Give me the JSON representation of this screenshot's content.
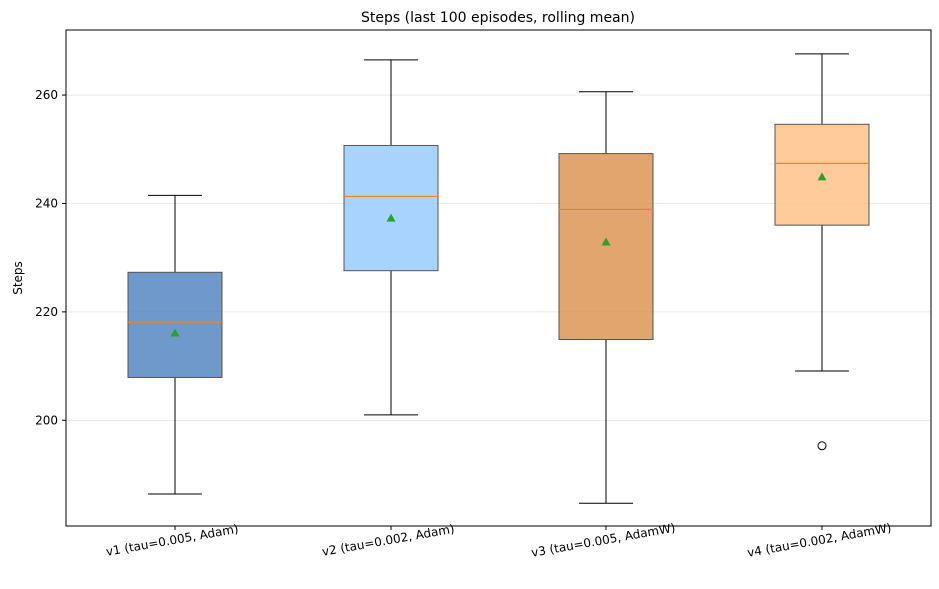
{
  "chart_data": {
    "type": "box",
    "title": "Steps (last 100 episodes, rolling mean)",
    "xlabel": "",
    "ylabel": "Steps",
    "ylim": [
      180.5,
      272.0
    ],
    "yticks": [
      200,
      220,
      240,
      260
    ],
    "grid": "y",
    "legend": "none",
    "categories": [
      "v1 (tau=0.005, Adam)",
      "v2 (tau=0.002, Adam)",
      "v3 (tau=0.005, AdamW)",
      "v4 (tau=0.002, AdamW)"
    ],
    "boxes": [
      {
        "whisker_low": 186.4,
        "q1": 207.9,
        "median": 218.1,
        "q3": 227.3,
        "whisker_high": 241.5,
        "mean": 216.1,
        "outliers": [],
        "color": "#4a7fbb"
      },
      {
        "whisker_low": 201.0,
        "q1": 227.6,
        "median": 241.3,
        "q3": 250.7,
        "whisker_high": 266.5,
        "mean": 237.3,
        "outliers": [],
        "color": "#94c8ff"
      },
      {
        "whisker_low": 184.7,
        "q1": 214.9,
        "median": 238.9,
        "q3": 249.2,
        "whisker_high": 260.6,
        "mean": 232.9,
        "outliers": [],
        "color": "#db8f48"
      },
      {
        "whisker_low": 209.1,
        "q1": 236.0,
        "median": 247.4,
        "q3": 254.6,
        "whisker_high": 267.6,
        "mean": 244.9,
        "outliers": [
          195.3
        ],
        "color": "#ffbe82"
      }
    ],
    "median_color": "#ff7f0e",
    "mean_marker_color": "#2ca02c",
    "mean_marker": "triangle"
  }
}
